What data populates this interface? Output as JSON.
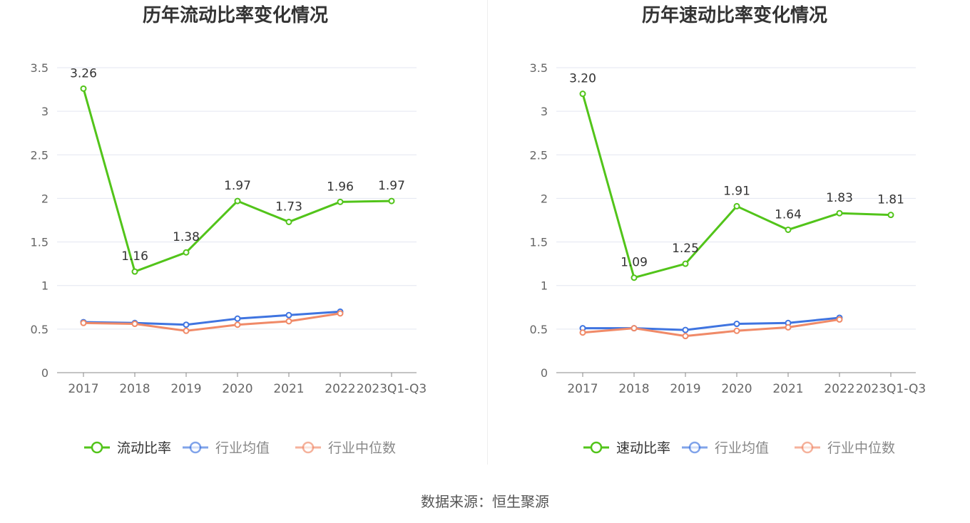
{
  "source_label": "数据来源：恒生聚源",
  "colors": {
    "main": "#52c41a",
    "avg": "#3f74e0",
    "median": "#f08a68",
    "grid": "#e3e6f0",
    "axis": "#888888",
    "tick_text": "#666666",
    "title_text": "#333333"
  },
  "chart_data": [
    {
      "type": "line",
      "title": "历年流动比率变化情况",
      "categories": [
        "2017",
        "2018",
        "2019",
        "2020",
        "2021",
        "2022",
        "2023Q1-Q3"
      ],
      "y_ticks": [
        0,
        0.5,
        1,
        1.5,
        2,
        2.5,
        3,
        3.5
      ],
      "y_tick_labels": [
        "0",
        "0.5",
        "1",
        "1.5",
        "2",
        "2.5",
        "3",
        "3.5"
      ],
      "ylim": [
        0,
        3.5
      ],
      "grid": true,
      "legend_position": "bottom",
      "series": [
        {
          "name": "流动比率",
          "role": "main",
          "values": [
            3.26,
            1.16,
            1.38,
            1.97,
            1.73,
            1.96,
            1.97
          ],
          "labels": [
            "3.26",
            "1.16",
            "1.38",
            "1.97",
            "1.73",
            "1.96",
            "1.97"
          ]
        },
        {
          "name": "行业均值",
          "role": "avg",
          "values": [
            0.58,
            0.57,
            0.55,
            0.62,
            0.66,
            0.7,
            null
          ]
        },
        {
          "name": "行业中位数",
          "role": "median",
          "values": [
            0.57,
            0.56,
            0.48,
            0.55,
            0.59,
            0.68,
            null
          ]
        }
      ]
    },
    {
      "type": "line",
      "title": "历年速动比率变化情况",
      "categories": [
        "2017",
        "2018",
        "2019",
        "2020",
        "2021",
        "2022",
        "2023Q1-Q3"
      ],
      "y_ticks": [
        0,
        0.5,
        1,
        1.5,
        2,
        2.5,
        3,
        3.5
      ],
      "y_tick_labels": [
        "0",
        "0.5",
        "1",
        "1.5",
        "2",
        "2.5",
        "3",
        "3.5"
      ],
      "ylim": [
        0,
        3.5
      ],
      "grid": true,
      "legend_position": "bottom",
      "series": [
        {
          "name": "速动比率",
          "role": "main",
          "values": [
            3.2,
            1.09,
            1.25,
            1.91,
            1.64,
            1.83,
            1.81
          ],
          "labels": [
            "3.20",
            "1.09",
            "1.25",
            "1.91",
            "1.64",
            "1.83",
            "1.81"
          ]
        },
        {
          "name": "行业均值",
          "role": "avg",
          "values": [
            0.51,
            0.51,
            0.49,
            0.56,
            0.57,
            0.63,
            null
          ]
        },
        {
          "name": "行业中位数",
          "role": "median",
          "values": [
            0.46,
            0.51,
            0.42,
            0.48,
            0.52,
            0.61,
            null
          ]
        }
      ]
    }
  ]
}
